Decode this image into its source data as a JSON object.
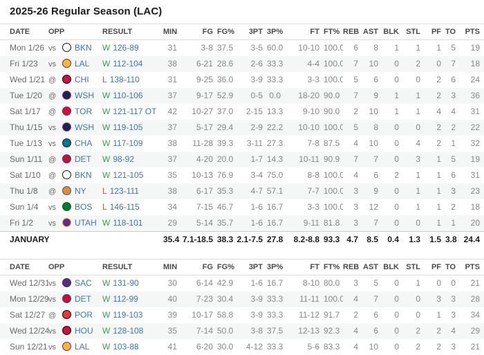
{
  "title": "2025-26 Regular Season (LAC)",
  "columns": [
    "DATE",
    "OPP",
    "RESULT",
    "MIN",
    "FG",
    "FG%",
    "3PT",
    "3P%",
    "FT",
    "FT%",
    "REB",
    "AST",
    "BLK",
    "STL",
    "PF",
    "TO",
    "PTS"
  ],
  "colors": {
    "title": "#1c1c1d",
    "header_text": "#48494a",
    "date_text": "#67696b",
    "stat_text": "#85878a",
    "link": "#3b77b5",
    "win": "#3d9b56",
    "loss": "#cc4a45",
    "stripe": "#f5f6f6",
    "border": "#dcdddf"
  },
  "teams": {
    "BKN": {
      "bg": "#ffffff",
      "ring": "#111111"
    },
    "LAL": {
      "bg": "#fdb927",
      "ring": "#552583"
    },
    "CHI": {
      "bg": "#ce1141",
      "ring": "#000000"
    },
    "WSH": {
      "bg": "#002b5c",
      "ring": "#e31837"
    },
    "TOR": {
      "bg": "#ce1141",
      "ring": "#a50d35"
    },
    "CHA": {
      "bg": "#00788c",
      "ring": "#1d1160"
    },
    "DET": {
      "bg": "#c8102e",
      "ring": "#1d42ba"
    },
    "NY": {
      "bg": "#f58426",
      "ring": "#006bb6"
    },
    "BOS": {
      "bg": "#007a33",
      "ring": "#0a5c2a"
    },
    "UTAH": {
      "bg": "#5f2b8e",
      "ring": "#f9a01b"
    },
    "SAC": {
      "bg": "#5a2d81",
      "ring": "#3b1f5e"
    },
    "POR": {
      "bg": "#e03a3e",
      "ring": "#000000"
    },
    "HOU": {
      "bg": "#ce1141",
      "ring": "#000000"
    }
  },
  "tables": [
    {
      "rows": [
        {
          "date": "Mon 1/26",
          "prefix": "vs",
          "team": "BKN",
          "wl": "W",
          "score": "126-89",
          "stats": [
            "31",
            "3-8",
            "37.5",
            "3-5",
            "60.0",
            "10-10",
            "100.0",
            "6",
            "8",
            "1",
            "1",
            "1",
            "5",
            "19"
          ]
        },
        {
          "date": "Fri 1/23",
          "prefix": "vs",
          "team": "LAL",
          "wl": "W",
          "score": "112-104",
          "stats": [
            "38",
            "6-21",
            "28.6",
            "2-6",
            "33.3",
            "4-4",
            "100.0",
            "7",
            "10",
            "0",
            "2",
            "0",
            "7",
            "18"
          ]
        },
        {
          "date": "Wed 1/21",
          "prefix": "@",
          "team": "CHI",
          "wl": "L",
          "score": "138-110",
          "stats": [
            "31",
            "9-25",
            "36.0",
            "3-9",
            "33.3",
            "3-3",
            "100.0",
            "5",
            "6",
            "0",
            "0",
            "2",
            "6",
            "24"
          ]
        },
        {
          "date": "Tue 1/20",
          "prefix": "@",
          "team": "WSH",
          "wl": "W",
          "score": "110-106",
          "stats": [
            "37",
            "9-17",
            "52.9",
            "0-5",
            "0.0",
            "18-20",
            "90.0",
            "7",
            "9",
            "1",
            "1",
            "2",
            "3",
            "36"
          ]
        },
        {
          "date": "Sat 1/17",
          "prefix": "@",
          "team": "TOR",
          "wl": "W",
          "score": "121-117 OT",
          "stats": [
            "42",
            "10-27",
            "37.0",
            "2-15",
            "13.3",
            "9-10",
            "90.0",
            "2",
            "10",
            "1",
            "1",
            "4",
            "4",
            "31"
          ]
        },
        {
          "date": "Thu 1/15",
          "prefix": "vs",
          "team": "WSH",
          "wl": "W",
          "score": "119-105",
          "stats": [
            "37",
            "5-17",
            "29.4",
            "2-9",
            "22.2",
            "10-10",
            "100.0",
            "5",
            "8",
            "0",
            "0",
            "2",
            "2",
            "22"
          ]
        },
        {
          "date": "Tue 1/13",
          "prefix": "vs",
          "team": "CHA",
          "wl": "W",
          "score": "117-109",
          "stats": [
            "38",
            "11-28",
            "39.3",
            "3-11",
            "27.3",
            "7-8",
            "87.5",
            "4",
            "10",
            "0",
            "4",
            "2",
            "1",
            "32"
          ]
        },
        {
          "date": "Sun 1/11",
          "prefix": "@",
          "team": "DET",
          "wl": "W",
          "score": "98-92",
          "stats": [
            "37",
            "4-20",
            "20.0",
            "1-7",
            "14.3",
            "10-11",
            "90.9",
            "7",
            "7",
            "0",
            "3",
            "1",
            "5",
            "19"
          ]
        },
        {
          "date": "Sat 1/10",
          "prefix": "@",
          "team": "BKN",
          "wl": "W",
          "score": "121-105",
          "stats": [
            "35",
            "10-13",
            "76.9",
            "3-4",
            "75.0",
            "8-8",
            "100.0",
            "4",
            "6",
            "2",
            "1",
            "1",
            "6",
            "31"
          ]
        },
        {
          "date": "Thu 1/8",
          "prefix": "@",
          "team": "NY",
          "wl": "L",
          "score": "123-111",
          "stats": [
            "38",
            "6-17",
            "35.3",
            "4-7",
            "57.1",
            "7-7",
            "100.0",
            "3",
            "9",
            "0",
            "1",
            "1",
            "3",
            "23"
          ]
        },
        {
          "date": "Sun 1/4",
          "prefix": "vs",
          "team": "BOS",
          "wl": "L",
          "score": "146-115",
          "stats": [
            "34",
            "7-15",
            "46.7",
            "1-6",
            "16.7",
            "3-3",
            "100.0",
            "3",
            "12",
            "0",
            "1",
            "1",
            "2",
            "18"
          ]
        },
        {
          "date": "Fri 1/2",
          "prefix": "vs",
          "team": "UTAH",
          "wl": "W",
          "score": "118-101",
          "stats": [
            "29",
            "5-14",
            "35.7",
            "1-6",
            "16.7",
            "9-11",
            "81.8",
            "3",
            "7",
            "0",
            "0",
            "1",
            "1",
            "20"
          ]
        }
      ],
      "total": {
        "label": "JANUARY",
        "stats": [
          "35.4",
          "7.1-18.5",
          "38.3",
          "2.1-7.5",
          "27.8",
          "8.2-8.8",
          "93.3",
          "4.7",
          "8.5",
          "0.4",
          "1.3",
          "1.5",
          "3.8",
          "24.4"
        ]
      }
    },
    {
      "rows": [
        {
          "date": "Wed 12/31",
          "prefix": "vs",
          "team": "SAC",
          "wl": "W",
          "score": "131-90",
          "stats": [
            "30",
            "6-14",
            "42.9",
            "1-6",
            "16.7",
            "8-10",
            "80.0",
            "3",
            "5",
            "0",
            "1",
            "0",
            "0",
            "21"
          ]
        },
        {
          "date": "Mon 12/29",
          "prefix": "vs",
          "team": "DET",
          "wl": "W",
          "score": "112-99",
          "stats": [
            "40",
            "7-23",
            "30.4",
            "3-9",
            "33.3",
            "11-11",
            "100.0",
            "4",
            "7",
            "0",
            "0",
            "3",
            "3",
            "28"
          ]
        },
        {
          "date": "Sat 12/27",
          "prefix": "@",
          "team": "POR",
          "wl": "W",
          "score": "119-103",
          "stats": [
            "39",
            "10-17",
            "58.8",
            "3-9",
            "33.3",
            "11-12",
            "91.7",
            "2",
            "6",
            "0",
            "0",
            "1",
            "3",
            "34"
          ]
        },
        {
          "date": "Wed 12/24",
          "prefix": "vs",
          "team": "HOU",
          "wl": "W",
          "score": "128-108",
          "stats": [
            "35",
            "7-14",
            "50.0",
            "3-8",
            "37.5",
            "12-13",
            "92.3",
            "4",
            "6",
            "0",
            "2",
            "2",
            "4",
            "29"
          ]
        },
        {
          "date": "Sun 12/21",
          "prefix": "vs",
          "team": "LAL",
          "wl": "W",
          "score": "103-88",
          "stats": [
            "41",
            "6-20",
            "30.0",
            "4-12",
            "33.3",
            "5-6",
            "83.3",
            "4",
            "10",
            "0",
            "2",
            "2",
            "3",
            "21"
          ]
        }
      ]
    }
  ]
}
